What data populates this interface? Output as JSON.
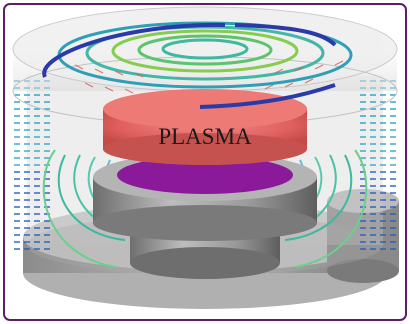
{
  "figure": {
    "plasma_label": "PLASMA"
  },
  "colors": {
    "frame_border": "#5c1f66",
    "plasma": "#e0605e",
    "substrate": "#8a1a9a",
    "coil": "#2a3aa8",
    "metal": "#9a9a9a"
  },
  "components": [
    "coil-icon",
    "glass-dome-icon",
    "plasma-icon",
    "pedestal-icon",
    "substrate-wafer-icon",
    "chamber-base-icon",
    "magnetic-field-lines-icon",
    "field-vector-icon"
  ]
}
